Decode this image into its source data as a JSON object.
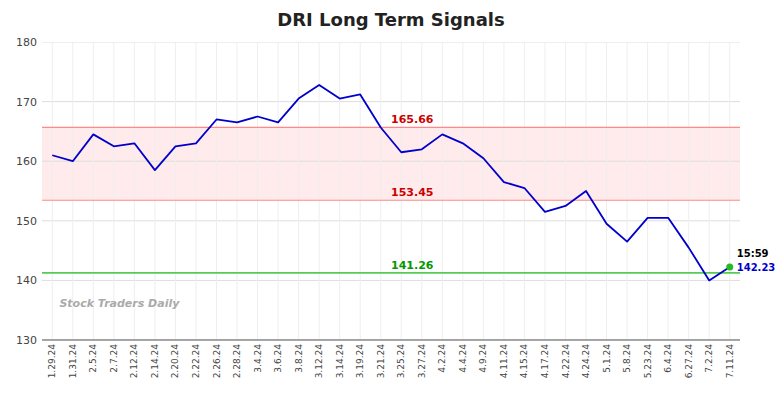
{
  "chart_data": {
    "type": "line",
    "title": "DRI Long Term Signals",
    "watermark": "Stock Traders Daily",
    "categories": [
      "1.29.24",
      "1.31.24",
      "2.5.24",
      "2.7.24",
      "2.12.24",
      "2.14.24",
      "2.20.24",
      "2.22.24",
      "2.26.24",
      "2.28.24",
      "3.4.24",
      "3.6.24",
      "3.8.24",
      "3.12.24",
      "3.14.24",
      "3.19.24",
      "3.21.24",
      "3.25.24",
      "3.27.24",
      "4.2.24",
      "4.4.24",
      "4.9.24",
      "4.11.24",
      "4.15.24",
      "4.17.24",
      "4.22.24",
      "4.24.24",
      "5.1.24",
      "5.8.24",
      "5.23.24",
      "6.4.24",
      "6.27.24",
      "7.2.24",
      "7.11.24"
    ],
    "series": [
      {
        "color": "#0000cc",
        "marker": "last",
        "marker_color": "#22bb22",
        "values": [
          161.0,
          160.0,
          164.5,
          162.5,
          163.0,
          158.5,
          162.5,
          163.0,
          167.0,
          166.5,
          167.5,
          166.5,
          170.5,
          172.8,
          170.5,
          171.2,
          165.66,
          161.5,
          162.0,
          164.5,
          163.0,
          160.5,
          156.5,
          155.5,
          151.5,
          152.5,
          155.0,
          149.5,
          146.5,
          150.5,
          150.5,
          145.5,
          140.0,
          142.23
        ],
        "last_labels": [
          "15:59",
          "142.23"
        ]
      }
    ],
    "reference_lines": [
      {
        "value": 165.66,
        "label": "165.66",
        "color": "#ff8888",
        "label_color": "#cc0000"
      },
      {
        "value": 153.45,
        "label": "153.45",
        "color": "#ff8888",
        "label_color": "#cc0000"
      },
      {
        "value": 141.26,
        "label": "141.26",
        "color": "#55cc55",
        "label_color": "#009900"
      }
    ],
    "bands": [
      {
        "from": 153.45,
        "to": 165.66,
        "color": "#ffdddd"
      }
    ],
    "ylim": [
      130,
      180
    ],
    "yticks": [
      130,
      140,
      150,
      160,
      170,
      180
    ],
    "grid": true
  }
}
